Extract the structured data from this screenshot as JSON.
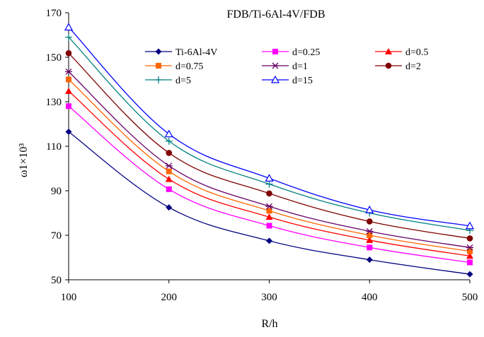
{
  "chart_data": {
    "type": "line",
    "title": "FDB/Ti-6Al-4V/FDB",
    "xlabel": "R/h",
    "ylabel": "ω1×10³",
    "x": [
      100,
      200,
      300,
      400,
      500
    ],
    "x_ticks": [
      "100",
      "200",
      "300",
      "400",
      "500"
    ],
    "y_ticks": [
      "50",
      "70",
      "90",
      "110",
      "130",
      "150",
      "170"
    ],
    "xlim": [
      100,
      500
    ],
    "ylim": [
      50,
      170
    ],
    "grid": false,
    "legend_position": "top-center, inside plot",
    "series": [
      {
        "name": "Ti-6Al-4V",
        "color": "#000080",
        "marker": "diamond",
        "values": [
          116.5,
          82.5,
          67.5,
          59.0,
          52.5
        ]
      },
      {
        "name": "d=0.25",
        "color": "#ff00ff",
        "marker": "square",
        "values": [
          128.0,
          90.7,
          74.3,
          64.5,
          57.8
        ]
      },
      {
        "name": "d=0.5",
        "color": "#ff0000",
        "marker": "triangle",
        "values": [
          134.8,
          95.2,
          78.2,
          67.8,
          60.7
        ]
      },
      {
        "name": "d=0.75",
        "color": "#ff6600",
        "marker": "square",
        "values": [
          140.0,
          98.7,
          81.0,
          70.0,
          62.8
        ]
      },
      {
        "name": "d=1",
        "color": "#660066",
        "marker": "star",
        "values": [
          143.5,
          101.2,
          83.0,
          71.8,
          64.5
        ]
      },
      {
        "name": "d=2",
        "color": "#800000",
        "marker": "circle",
        "values": [
          151.8,
          107.0,
          88.8,
          76.2,
          68.6
        ]
      },
      {
        "name": "d=5",
        "color": "#008080",
        "marker": "plus",
        "values": [
          159.0,
          112.3,
          93.0,
          80.0,
          72.2
        ]
      },
      {
        "name": "d=15",
        "color": "#0000ff",
        "marker": "triangle-open",
        "values": [
          163.5,
          115.5,
          95.6,
          81.4,
          74.2
        ]
      }
    ]
  }
}
